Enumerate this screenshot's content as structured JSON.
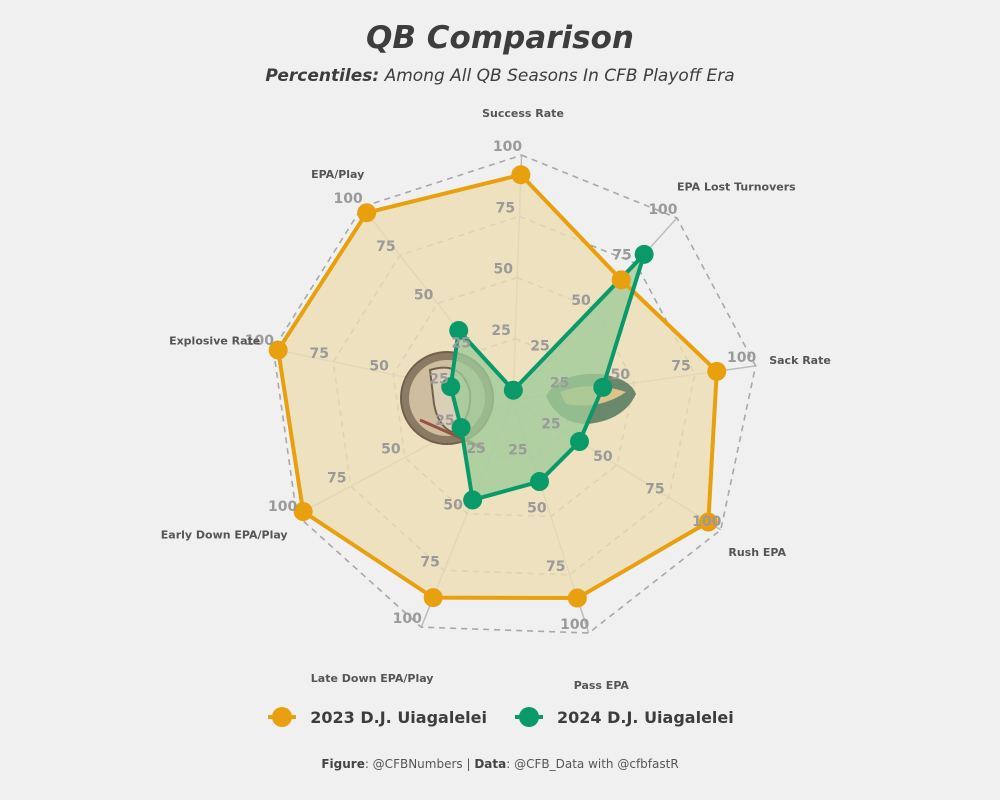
{
  "title": "QB Comparison",
  "subtitle_bold": "Percentiles:",
  "subtitle_rest": " Among All QB Seasons In CFB Playoff Era",
  "caption": {
    "figure_label": "Figure",
    "figure_value": ": @CFBNumbers | ",
    "data_label": "Data",
    "data_value": ": @CFB_Data with @cfbfastR"
  },
  "colors": {
    "series_2023": "#e8a00e",
    "series_2024": "#0a9a6a",
    "fill_2023": "#edddb3",
    "fill_2024": "#9fca9a",
    "background": "#f0f0f0"
  },
  "logos": [
    {
      "name": "florida-state-seminoles-logo"
    },
    {
      "name": "oregon-ducks-logo"
    }
  ],
  "chart_data": {
    "type": "radar",
    "axes": [
      "Success Rate",
      "EPA Lost Turnovers",
      "Sack Rate",
      "Rush EPA",
      "Pass EPA",
      "Late Down EPA/Play",
      "Early Down EPA/Play",
      "Explosive Rate",
      "EPA/Play"
    ],
    "ticks": [
      25,
      50,
      75,
      100
    ],
    "range": [
      0,
      100
    ],
    "grid": true,
    "legend_position": "bottom",
    "series": [
      {
        "name": "2023 D.J. Uiagalelei",
        "values": [
          92,
          66,
          84,
          94,
          85,
          87,
          97,
          98,
          97
        ]
      },
      {
        "name": "2024 D.J. Uiagalelei",
        "values": [
          4,
          80,
          37,
          32,
          35,
          44,
          24,
          26,
          36
        ]
      }
    ]
  }
}
